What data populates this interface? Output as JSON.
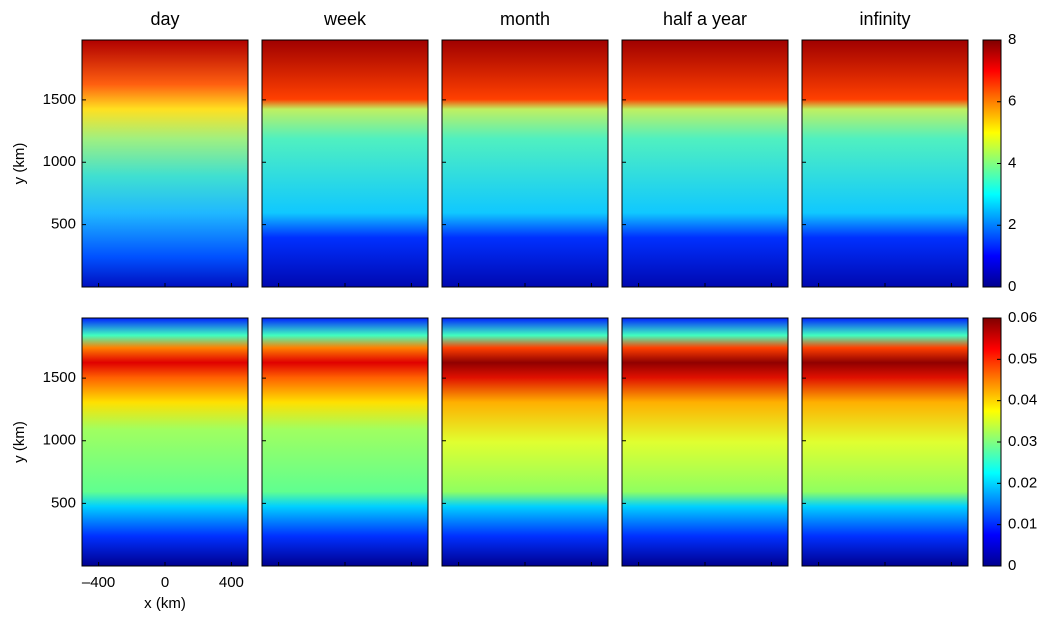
{
  "columns": [
    "day",
    "week",
    "month",
    "half a year",
    "infinity"
  ],
  "y_axis": {
    "label": "y (km)",
    "lim": [
      0,
      1980
    ],
    "ticks": [
      500,
      1000,
      1500
    ]
  },
  "x_axis": {
    "label": "x (km)",
    "lim": [
      -500,
      500
    ],
    "ticks": [
      {
        "value": -400,
        "label": "–400"
      },
      0,
      400
    ]
  },
  "rows": [
    {
      "colorbar": {
        "lim": [
          0,
          8
        ],
        "ticks": [
          0,
          2,
          4,
          6,
          8
        ]
      }
    },
    {
      "colorbar": {
        "lim": [
          0,
          0.06
        ],
        "ticks": [
          0,
          0.01,
          0.02,
          0.03,
          0.04,
          0.05,
          0.06
        ]
      }
    }
  ]
}
